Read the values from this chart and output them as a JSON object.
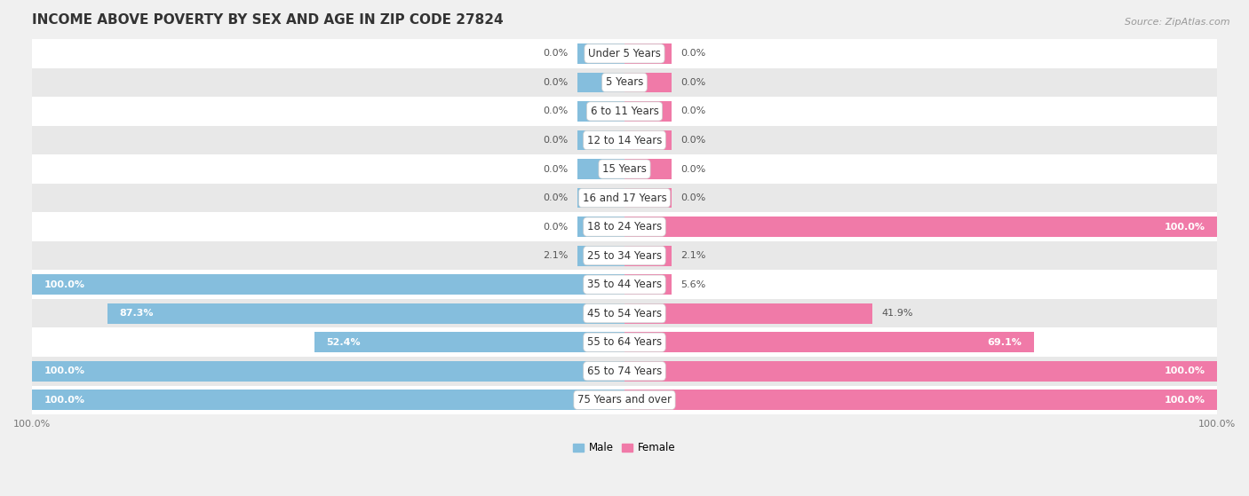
{
  "title": "INCOME ABOVE POVERTY BY SEX AND AGE IN ZIP CODE 27824",
  "source": "Source: ZipAtlas.com",
  "categories": [
    "Under 5 Years",
    "5 Years",
    "6 to 11 Years",
    "12 to 14 Years",
    "15 Years",
    "16 and 17 Years",
    "18 to 24 Years",
    "25 to 34 Years",
    "35 to 44 Years",
    "45 to 54 Years",
    "55 to 64 Years",
    "65 to 74 Years",
    "75 Years and over"
  ],
  "male": [
    0.0,
    0.0,
    0.0,
    0.0,
    0.0,
    0.0,
    0.0,
    2.1,
    100.0,
    87.3,
    52.4,
    100.0,
    100.0
  ],
  "female": [
    0.0,
    0.0,
    0.0,
    0.0,
    0.0,
    0.0,
    100.0,
    2.1,
    5.6,
    41.9,
    69.1,
    100.0,
    100.0
  ],
  "male_color": "#85bedd",
  "female_color": "#f07aa8",
  "male_label": "Male",
  "female_label": "Female",
  "background_color": "#f0f0f0",
  "row_bg_even": "#ffffff",
  "row_bg_odd": "#e8e8e8",
  "min_bar": 8.0,
  "xlim": 100,
  "title_fontsize": 11,
  "cat_fontsize": 8.5,
  "val_fontsize": 8.0,
  "legend_fontsize": 8.5,
  "source_fontsize": 8.0
}
